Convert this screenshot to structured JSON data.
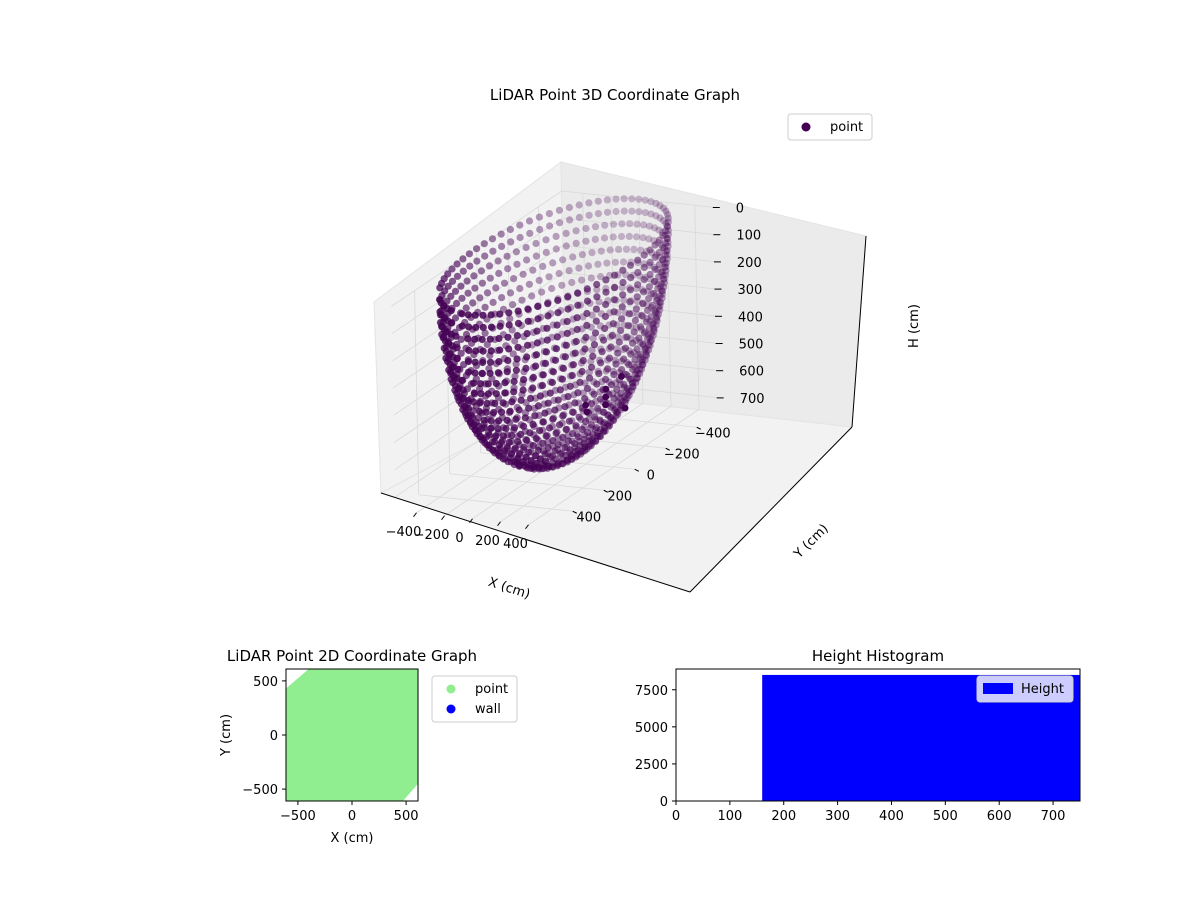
{
  "chart_data": [
    {
      "type": "scatter",
      "projection": "3d",
      "title": "LiDAR Point 3D Coordinate Graph",
      "xlabel": "X (cm)",
      "ylabel": "Y (cm)",
      "zlabel": "H (cm)",
      "xticks": [
        "−400",
        "−200",
        "0",
        "200",
        "400"
      ],
      "yticks": [
        "−400",
        "−200",
        "0",
        "200",
        "400"
      ],
      "zticks": [
        "0",
        "100",
        "200",
        "300",
        "400",
        "500",
        "600",
        "700"
      ],
      "xlim": [
        -550,
        550
      ],
      "ylim": [
        -550,
        550
      ],
      "zlim": [
        0,
        750
      ],
      "zaxis_inverted": true,
      "grid": true,
      "legend": {
        "location": "upper-right",
        "entries": [
          "point"
        ]
      },
      "series": [
        {
          "name": "point",
          "color": "#440154",
          "shape": "hemispherical bowl of points, radius ~550 cm, depth ~750 cm"
        }
      ]
    },
    {
      "type": "scatter",
      "title": "LiDAR Point 2D Coordinate Graph",
      "xlabel": "X (cm)",
      "ylabel": "Y (cm)",
      "xticks": [
        "−500",
        "0",
        "500"
      ],
      "yticks": [
        "−500",
        "0",
        "500"
      ],
      "xlim": [
        -610,
        610
      ],
      "ylim": [
        -610,
        610
      ],
      "legend": {
        "location": "outside-right",
        "entries": [
          "point",
          "wall"
        ]
      },
      "series": [
        {
          "name": "point",
          "color": "#90ee90",
          "region_polygon": [
            [
              -400,
              610
            ],
            [
              610,
              610
            ],
            [
              610,
              -450
            ],
            [
              470,
              -610
            ],
            [
              -610,
              -610
            ],
            [
              -610,
              430
            ]
          ]
        },
        {
          "name": "wall",
          "color": "#0000ff",
          "points": []
        }
      ]
    },
    {
      "type": "bar",
      "title": "Height Histogram",
      "xticks": [
        "0",
        "100",
        "200",
        "300",
        "400",
        "500",
        "600",
        "700"
      ],
      "yticks": [
        "0",
        "2500",
        "5000",
        "7500"
      ],
      "xlim": [
        0,
        750
      ],
      "ylim": [
        0,
        8900
      ],
      "legend": {
        "location": "upper-right",
        "entries": [
          "Height"
        ]
      },
      "series": [
        {
          "name": "Height",
          "color": "#0000ff",
          "bins": [
            {
              "start": 160,
              "end": 750,
              "value": 8500
            }
          ]
        }
      ]
    }
  ]
}
